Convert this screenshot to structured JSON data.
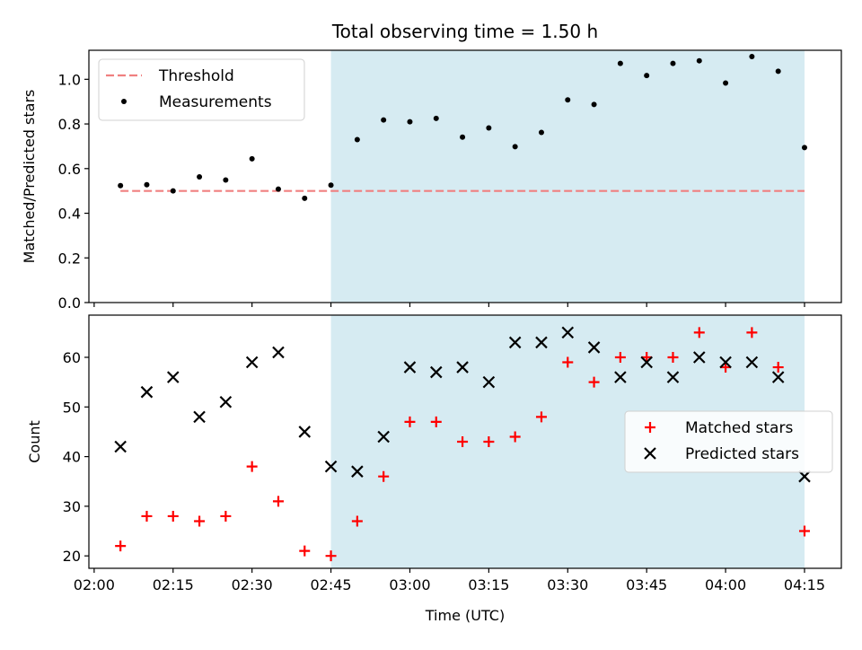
{
  "chart_data": {
    "title": "Total observing time = 1.50 h",
    "xlabel": "Time (UTC)",
    "x_ticks": [
      "02:00",
      "02:15",
      "02:30",
      "02:45",
      "03:00",
      "03:15",
      "03:30",
      "03:45",
      "04:00",
      "04:15"
    ],
    "times": [
      "02:05",
      "02:10",
      "02:15",
      "02:20",
      "02:25",
      "02:30",
      "02:35",
      "02:40",
      "02:45",
      "02:50",
      "02:55",
      "03:00",
      "03:05",
      "03:10",
      "03:15",
      "03:20",
      "03:25",
      "03:30",
      "03:35",
      "03:40",
      "03:45",
      "03:50",
      "03:55",
      "04:00",
      "04:05",
      "04:10",
      "04:15"
    ],
    "xlim": [
      "01:59",
      "04:22"
    ],
    "highlight_span": [
      "02:45",
      "04:15"
    ],
    "highlight_color": "#add8e6",
    "panels": [
      {
        "type": "scatter",
        "ylabel": "Matched/Predicted stars",
        "ylim": [
          0,
          1.13
        ],
        "y_ticks": [
          "0.0",
          "0.2",
          "0.4",
          "0.6",
          "0.8",
          "1.0"
        ],
        "legend_placement": "upper-left",
        "threshold": {
          "name": "Threshold",
          "value": 0.5,
          "x_range": [
            "02:05",
            "04:15"
          ],
          "color": "#f08080"
        },
        "series": [
          {
            "name": "Measurements",
            "color": "#000000",
            "marker": "dot",
            "values": [
              0.524,
              0.528,
              0.5,
              0.563,
              0.549,
              0.644,
              0.508,
              0.467,
              0.526,
              0.73,
              0.818,
              0.81,
              0.825,
              0.741,
              0.782,
              0.698,
              0.762,
              0.908,
              0.887,
              1.071,
              1.017,
              1.071,
              1.083,
              0.983,
              1.102,
              1.036,
              0.694
            ]
          }
        ]
      },
      {
        "type": "scatter",
        "ylabel": "Count",
        "ylim": [
          17.5,
          68.5
        ],
        "y_ticks": [
          "20",
          "30",
          "40",
          "50",
          "60"
        ],
        "legend_placement": "center-right",
        "series": [
          {
            "name": "Matched stars",
            "color": "#ff0000",
            "marker": "plus",
            "values": [
              22,
              28,
              28,
              27,
              28,
              38,
              31,
              21,
              20,
              27,
              36,
              47,
              47,
              43,
              43,
              44,
              48,
              59,
              55,
              60,
              60,
              60,
              65,
              58,
              65,
              58,
              25
            ]
          },
          {
            "name": "Predicted stars",
            "color": "#000000",
            "marker": "x",
            "values": [
              42,
              53,
              56,
              48,
              51,
              59,
              61,
              45,
              38,
              37,
              44,
              58,
              57,
              58,
              55,
              63,
              63,
              65,
              62,
              56,
              59,
              56,
              60,
              59,
              59,
              56,
              36
            ]
          }
        ]
      }
    ]
  }
}
